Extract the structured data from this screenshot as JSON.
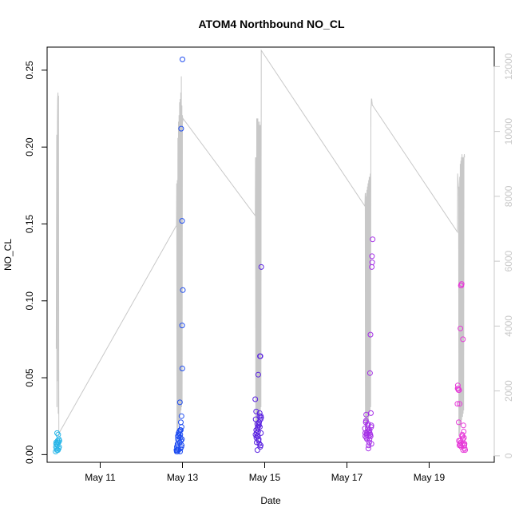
{
  "chart_data": {
    "type": "scatter",
    "title": "ATOM4 Northbound NO_CL",
    "xlabel": "Date",
    "ylabel": "NO_CL",
    "ylim": [
      -0.005,
      0.265
    ],
    "y2lim": [
      -200,
      12600
    ],
    "xlim": [
      "2021-05-09 17:00",
      "2021-05-20 14:00"
    ],
    "grid": false,
    "x_tick_labels": [
      "May 11",
      "May 13",
      "May 15",
      "May 17",
      "May 19"
    ],
    "x_tick_dates": [
      "2021-05-11",
      "2021-05-13",
      "2021-05-15",
      "2021-05-17",
      "2021-05-19"
    ],
    "y_tick_labels": [
      "0.00",
      "0.05",
      "0.10",
      "0.15",
      "0.20",
      "0.25"
    ],
    "y_tick_values": [
      0,
      0.05,
      0.1,
      0.15,
      0.2,
      0.25
    ],
    "y2_tick_labels": [
      "0",
      "2000",
      "4000",
      "6000",
      "8000",
      "10000",
      "12000"
    ],
    "y2_tick_values": [
      0,
      2000,
      4000,
      6000,
      8000,
      10000,
      12000
    ],
    "colors": {
      "may09": "#29b6e8",
      "may12": "#1e4cf0",
      "may14": "#5a22e0",
      "may17": "#a630e8",
      "may19": "#e63ad8",
      "line": "#c8c8c8"
    },
    "series": [
      {
        "color_key": "may09",
        "x": [
          "2021-05-09 22:00",
          "2021-05-09 22:10",
          "2021-05-09 22:20",
          "2021-05-09 22:30",
          "2021-05-09 22:40",
          "2021-05-09 22:50",
          "2021-05-09 23:00",
          "2021-05-09 23:10",
          "2021-05-09 23:20",
          "2021-05-09 23:30",
          "2021-05-09 23:40",
          "2021-05-09 23:50",
          "2021-05-10 00:00",
          "2021-05-10 00:10",
          "2021-05-09 22:15",
          "2021-05-09 22:45",
          "2021-05-09 23:15",
          "2021-05-09 23:45"
        ],
        "y": [
          0.002,
          0.005,
          0.008,
          0.004,
          0.007,
          0.014,
          0.006,
          0.009,
          0.003,
          0.013,
          0.008,
          0.01,
          0.005,
          0.009,
          0.007,
          0.003,
          0.008,
          0.004
        ]
      },
      {
        "color_key": "may12",
        "x": [
          "2021-05-12 20:30",
          "2021-05-12 20:45",
          "2021-05-12 21:00",
          "2021-05-12 21:15",
          "2021-05-12 21:30",
          "2021-05-12 21:45",
          "2021-05-12 22:00",
          "2021-05-12 22:15",
          "2021-05-12 22:30",
          "2021-05-12 22:45",
          "2021-05-12 23:00",
          "2021-05-12 23:15",
          "2021-05-12 23:30",
          "2021-05-12 23:45",
          "2021-05-13 00:00",
          "2021-05-13 00:15",
          "2021-05-12 20:40",
          "2021-05-12 21:05",
          "2021-05-12 21:20",
          "2021-05-12 21:40",
          "2021-05-12 22:05",
          "2021-05-12 22:25",
          "2021-05-12 22:40",
          "2021-05-12 22:55",
          "2021-05-12 23:05",
          "2021-05-12 23:25",
          "2021-05-12 23:35",
          "2021-05-12 23:50",
          "2021-05-12 20:50",
          "2021-05-12 21:50",
          "2021-05-12 22:50",
          "2021-05-12 23:55",
          "2021-05-12 21:10",
          "2021-05-12 22:10",
          "2021-05-12 23:10",
          "2021-05-12 23:40",
          "2021-05-12 22:35",
          "2021-05-12 23:20"
        ],
        "y": [
          0.003,
          0.005,
          0.002,
          0.012,
          0.004,
          0.014,
          0.009,
          0.015,
          0.034,
          0.013,
          0.016,
          0.212,
          0.018,
          0.152,
          0.257,
          0.107,
          0.002,
          0.006,
          0.01,
          0.003,
          0.012,
          0.008,
          0.016,
          0.004,
          0.021,
          0.025,
          0.006,
          0.084,
          0.003,
          0.013,
          0.011,
          0.056,
          0.007,
          0.015,
          0.009,
          0.01,
          0.002,
          0.005
        ]
      },
      {
        "color_key": "may14",
        "x": [
          "2021-05-14 18:30",
          "2021-05-14 18:45",
          "2021-05-14 19:00",
          "2021-05-14 19:15",
          "2021-05-14 19:30",
          "2021-05-14 19:45",
          "2021-05-14 20:00",
          "2021-05-14 20:15",
          "2021-05-14 20:30",
          "2021-05-14 20:45",
          "2021-05-14 21:00",
          "2021-05-14 21:15",
          "2021-05-14 21:30",
          "2021-05-14 21:45",
          "2021-05-14 22:00",
          "2021-05-14 18:40",
          "2021-05-14 19:05",
          "2021-05-14 19:20",
          "2021-05-14 19:40",
          "2021-05-14 20:05",
          "2021-05-14 20:25",
          "2021-05-14 20:40",
          "2021-05-14 20:55",
          "2021-05-14 21:05",
          "2021-05-14 21:25",
          "2021-05-14 21:35",
          "2021-05-14 21:50",
          "2021-05-14 19:10",
          "2021-05-14 20:10",
          "2021-05-14 20:35",
          "2021-05-14 21:10",
          "2021-05-14 21:40",
          "2021-05-14 21:55",
          "2021-05-14 19:55"
        ],
        "y": [
          0.036,
          0.023,
          0.028,
          0.014,
          0.012,
          0.003,
          0.018,
          0.052,
          0.01,
          0.021,
          0.025,
          0.064,
          0.064,
          0.025,
          0.122,
          0.013,
          0.016,
          0.008,
          0.02,
          0.012,
          0.009,
          0.019,
          0.007,
          0.027,
          0.005,
          0.023,
          0.014,
          0.011,
          0.015,
          0.02,
          0.018,
          0.006,
          0.024,
          0.017
        ]
      },
      {
        "color_key": "may17",
        "x": [
          "2021-05-17 10:30",
          "2021-05-17 10:45",
          "2021-05-17 11:00",
          "2021-05-17 11:15",
          "2021-05-17 11:30",
          "2021-05-17 11:45",
          "2021-05-17 12:00",
          "2021-05-17 12:15",
          "2021-05-17 12:30",
          "2021-05-17 12:45",
          "2021-05-17 13:00",
          "2021-05-17 13:15",
          "2021-05-17 13:30",
          "2021-05-17 13:45",
          "2021-05-17 14:00",
          "2021-05-17 14:15",
          "2021-05-17 14:30",
          "2021-05-17 14:45",
          "2021-05-17 15:00",
          "2021-05-17 10:40",
          "2021-05-17 11:10",
          "2021-05-17 11:40",
          "2021-05-17 12:10",
          "2021-05-17 12:40",
          "2021-05-17 13:10",
          "2021-05-17 13:40",
          "2021-05-17 14:10",
          "2021-05-17 14:40",
          "2021-05-17 11:20",
          "2021-05-17 12:20",
          "2021-05-17 13:20",
          "2021-05-17 14:20",
          "2021-05-17 12:50",
          "2021-05-17 13:50"
        ],
        "y": [
          0.017,
          0.012,
          0.021,
          0.026,
          0.014,
          0.01,
          0.015,
          0.019,
          0.004,
          0.012,
          0.008,
          0.016,
          0.053,
          0.078,
          0.027,
          0.019,
          0.122,
          0.125,
          0.14,
          0.014,
          0.022,
          0.013,
          0.017,
          0.006,
          0.01,
          0.013,
          0.018,
          0.129,
          0.011,
          0.02,
          0.014,
          0.007,
          0.015,
          0.012
        ]
      },
      {
        "color_key": "may19",
        "x": [
          "2021-05-19 16:30",
          "2021-05-19 16:45",
          "2021-05-19 17:00",
          "2021-05-19 17:15",
          "2021-05-19 17:30",
          "2021-05-19 17:45",
          "2021-05-19 18:00",
          "2021-05-19 18:15",
          "2021-05-19 18:30",
          "2021-05-19 18:45",
          "2021-05-19 19:00",
          "2021-05-19 19:15",
          "2021-05-19 19:30",
          "2021-05-19 19:45",
          "2021-05-19 20:00",
          "2021-05-19 20:15",
          "2021-05-19 20:30",
          "2021-05-19 20:45",
          "2021-05-19 21:00",
          "2021-05-19 16:40",
          "2021-05-19 17:10",
          "2021-05-19 17:40",
          "2021-05-19 18:10",
          "2021-05-19 18:40",
          "2021-05-19 19:10",
          "2021-05-19 19:40",
          "2021-05-19 20:10",
          "2021-05-19 20:40",
          "2021-05-19 17:20",
          "2021-05-19 18:20",
          "2021-05-19 19:20",
          "2021-05-19 20:20",
          "2021-05-19 18:50",
          "2021-05-19 19:50"
        ],
        "y": [
          0.033,
          0.045,
          0.043,
          0.021,
          0.042,
          0.033,
          0.007,
          0.082,
          0.11,
          0.11,
          0.111,
          0.013,
          0.012,
          0.075,
          0.019,
          0.007,
          0.006,
          0.004,
          0.003,
          0.043,
          0.042,
          0.006,
          0.009,
          0.008,
          0.012,
          0.01,
          0.015,
          0.007,
          0.009,
          0.006,
          0.007,
          0.011,
          0.005,
          0.003
        ]
      }
    ],
    "line_series": {
      "color_key": "line",
      "axis": "right",
      "x": [
        "2021-05-09 22:20",
        "2021-05-09 22:35",
        "2021-05-09 22:40",
        "2021-05-09 22:45",
        "2021-05-09 22:55",
        "2021-05-09 23:00",
        "2021-05-09 23:10",
        "2021-05-09 23:20",
        "2021-05-09 23:30",
        "2021-05-09 23:40",
        "2021-05-09 23:50",
        "2021-05-10 00:00",
        "2021-05-12 20:30",
        "2021-05-12 20:40",
        "2021-05-12 20:50",
        "2021-05-12 21:00",
        "2021-05-12 21:10",
        "2021-05-12 21:20",
        "2021-05-12 21:30",
        "2021-05-12 21:40",
        "2021-05-12 21:50",
        "2021-05-12 22:00",
        "2021-05-12 22:10",
        "2021-05-12 22:20",
        "2021-05-12 22:30",
        "2021-05-12 22:40",
        "2021-05-12 22:50",
        "2021-05-12 23:00",
        "2021-05-12 23:10",
        "2021-05-12 23:20",
        "2021-05-12 23:30",
        "2021-05-12 23:40",
        "2021-05-12 23:50",
        "2021-05-13 00:00",
        "2021-05-13 00:10",
        "2021-05-13 00:20",
        "2021-05-14 18:30",
        "2021-05-14 18:40",
        "2021-05-14 18:50",
        "2021-05-14 19:00",
        "2021-05-14 19:10",
        "2021-05-14 19:20",
        "2021-05-14 19:30",
        "2021-05-14 19:40",
        "2021-05-14 19:50",
        "2021-05-14 20:00",
        "2021-05-14 20:10",
        "2021-05-14 20:20",
        "2021-05-14 20:30",
        "2021-05-14 20:40",
        "2021-05-14 20:50",
        "2021-05-14 21:00",
        "2021-05-14 21:10",
        "2021-05-14 21:20",
        "2021-05-14 21:30",
        "2021-05-14 21:40",
        "2021-05-14 21:50",
        "2021-05-14 22:00",
        "2021-05-17 10:30",
        "2021-05-17 10:40",
        "2021-05-17 10:50",
        "2021-05-17 11:00",
        "2021-05-17 11:10",
        "2021-05-17 11:20",
        "2021-05-17 11:30",
        "2021-05-17 11:40",
        "2021-05-17 11:50",
        "2021-05-17 12:00",
        "2021-05-17 12:10",
        "2021-05-17 12:20",
        "2021-05-17 12:30",
        "2021-05-17 12:40",
        "2021-05-17 12:50",
        "2021-05-17 13:00",
        "2021-05-17 13:10",
        "2021-05-17 13:20",
        "2021-05-17 13:30",
        "2021-05-17 13:40",
        "2021-05-17 13:50",
        "2021-05-17 14:00",
        "2021-05-17 14:10",
        "2021-05-17 14:20",
        "2021-05-17 14:30",
        "2021-05-17 14:40",
        "2021-05-17 14:50",
        "2021-05-17 15:00",
        "2021-05-19 16:30",
        "2021-05-19 16:40",
        "2021-05-19 16:50",
        "2021-05-19 17:00",
        "2021-05-19 17:10",
        "2021-05-19 17:20",
        "2021-05-19 17:30",
        "2021-05-19 17:40",
        "2021-05-19 17:50",
        "2021-05-19 18:00",
        "2021-05-19 18:10",
        "2021-05-19 18:20",
        "2021-05-19 18:30",
        "2021-05-19 18:40",
        "2021-05-19 18:50",
        "2021-05-19 19:00",
        "2021-05-19 19:10",
        "2021-05-19 19:20",
        "2021-05-19 19:30",
        "2021-05-19 19:40",
        "2021-05-19 19:50",
        "2021-05-19 20:00",
        "2021-05-19 20:10",
        "2021-05-19 20:20",
        "2021-05-19 20:30",
        "2021-05-19 20:40"
      ],
      "y": [
        3300,
        9900,
        1500,
        9700,
        2300,
        10300,
        11000,
        11200,
        1300,
        11100,
        600,
        700,
        7100,
        8400,
        600,
        8500,
        800,
        9800,
        900,
        10300,
        1000,
        10500,
        1100,
        10900,
        1200,
        11000,
        1300,
        11200,
        1400,
        11700,
        1500,
        10800,
        1600,
        10500,
        10300,
        10400,
        7400,
        9200,
        600,
        9200,
        700,
        10400,
        800,
        10400,
        900,
        10400,
        1000,
        10300,
        1100,
        10200,
        1200,
        10300,
        1300,
        10200,
        1400,
        10200,
        1500,
        12500,
        7700,
        8100,
        600,
        8100,
        700,
        8000,
        800,
        8200,
        900,
        8300,
        1000,
        8400,
        1100,
        8500,
        1200,
        8600,
        1300,
        8600,
        1400,
        8700,
        1500,
        10700,
        10800,
        11000,
        11000,
        10900,
        10800,
        10800,
        6900,
        8700,
        8500,
        8400,
        8200,
        600,
        8300,
        700,
        8600,
        800,
        9000,
        900,
        9100,
        1000,
        9200,
        1100,
        9300,
        9100,
        1200,
        9200,
        1300,
        9200,
        1400,
        9200,
        9300,
        9200
      ]
    }
  }
}
